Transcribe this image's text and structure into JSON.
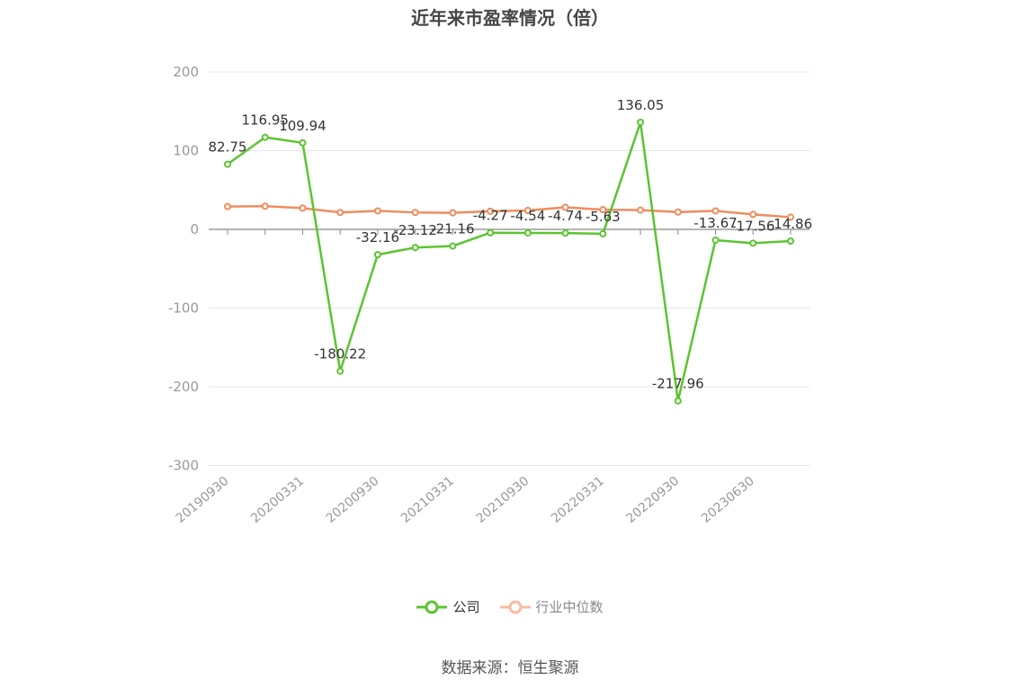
{
  "chart_data": {
    "type": "line",
    "title": "近年来市盈率情况（倍）",
    "source": "数据来源：恒生聚源",
    "ylim": [
      -300,
      200
    ],
    "yticks": [
      200,
      100,
      0,
      -100,
      -200,
      -300
    ],
    "xtick_labels": [
      "20190930",
      "20200331",
      "20200930",
      "20210331",
      "20210930",
      "20220331",
      "20220930",
      "20230630"
    ],
    "x_index_of_ticks": [
      0,
      2,
      4,
      6,
      8,
      10,
      12,
      14
    ],
    "point_count": 16,
    "grid": true,
    "legend_position": "bottom",
    "series": [
      {
        "name": "公司",
        "color": "#5cc431",
        "values": [
          82.75,
          116.95,
          109.94,
          -180.22,
          -32.16,
          -23.12,
          -21.16,
          -4.27,
          -4.54,
          -4.74,
          -5.63,
          136.05,
          -217.96,
          -13.67,
          -17.56,
          -14.86
        ],
        "labels": [
          "82.75",
          "116.95",
          "109.94",
          "-180.22",
          "-32.16",
          "-23.12",
          "-21.16",
          "-4.27",
          "-4.54",
          "-4.74",
          "-5.63",
          "136.05",
          "-217.96",
          "-13.67",
          "-17.56",
          "-14.86"
        ]
      },
      {
        "name": "行业中位数",
        "color": "#f08b5c",
        "values": [
          29,
          29.5,
          27,
          21.5,
          23.5,
          21.5,
          21,
          23,
          24,
          28,
          25,
          24.5,
          22,
          23.5,
          19,
          15.5
        ]
      }
    ]
  }
}
